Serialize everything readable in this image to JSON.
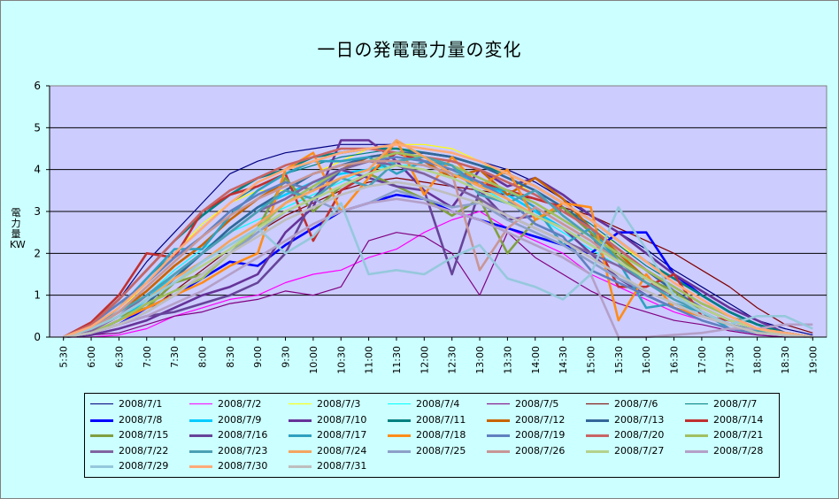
{
  "chart_data": {
    "type": "line",
    "title": "一日の発電電力量の変化",
    "ylabel": "電力量KW",
    "ylim": [
      0,
      6
    ],
    "yticks": [
      0,
      1,
      2,
      3,
      4,
      5,
      6
    ],
    "grid": true,
    "legend_position": "bottom",
    "x": [
      "5:30",
      "6:00",
      "6:30",
      "7:00",
      "7:30",
      "8:00",
      "8:30",
      "9:00",
      "9:30",
      "10:00",
      "10:30",
      "11:00",
      "11:30",
      "12:00",
      "12:30",
      "13:00",
      "13:30",
      "14:00",
      "14:30",
      "15:00",
      "15:30",
      "16:00",
      "16:30",
      "17:00",
      "17:30",
      "18:00",
      "18:30",
      "19:00"
    ],
    "series": [
      {
        "name": "2008/7/1",
        "color": "#000080",
        "values": [
          0,
          0.3,
          0.9,
          1.8,
          2.5,
          3.2,
          3.9,
          4.2,
          4.4,
          4.5,
          4.6,
          4.6,
          4.6,
          4.5,
          4.4,
          4.2,
          4.0,
          3.7,
          3.3,
          2.9,
          2.5,
          2.1,
          1.6,
          1.2,
          0.8,
          0.4,
          0.2,
          0.05
        ]
      },
      {
        "name": "2008/7/2",
        "color": "#ff00ff",
        "values": [
          0,
          0,
          0.05,
          0.2,
          0.5,
          0.7,
          0.9,
          1.0,
          1.3,
          1.5,
          1.6,
          1.9,
          2.1,
          2.5,
          2.8,
          3.0,
          2.6,
          2.3,
          2.0,
          1.5,
          1.2,
          0.9,
          0.6,
          0.4,
          0.2,
          0.1,
          0.05,
          0
        ]
      },
      {
        "name": "2008/7/3",
        "color": "#ffff00",
        "values": [
          0,
          0.2,
          0.6,
          1.3,
          2.0,
          2.7,
          3.2,
          3.5,
          3.5,
          3.9,
          4.2,
          4.5,
          4.6,
          4.6,
          4.5,
          4.2,
          3.8,
          3.4,
          3.0,
          2.6,
          2.2,
          1.8,
          1.3,
          0.9,
          0.5,
          0.3,
          0.1,
          0
        ]
      },
      {
        "name": "2008/7/4",
        "color": "#00ffff",
        "values": [
          0,
          0.15,
          0.5,
          1.0,
          1.6,
          2.1,
          2.5,
          2.8,
          3.1,
          3.4,
          3.7,
          4.0,
          4.1,
          4.1,
          3.9,
          3.6,
          3.2,
          2.9,
          2.5,
          2.1,
          1.7,
          1.3,
          0.9,
          0.6,
          0.3,
          0.15,
          0.05,
          0
        ]
      },
      {
        "name": "2008/7/5",
        "color": "#800080",
        "values": [
          0,
          0.05,
          0.1,
          0.3,
          0.5,
          0.6,
          0.8,
          0.9,
          1.1,
          1.0,
          1.2,
          2.3,
          2.5,
          2.4,
          2.0,
          1.0,
          2.5,
          1.9,
          1.5,
          1.1,
          0.8,
          0.6,
          0.4,
          0.3,
          0.15,
          0.05,
          0,
          0
        ]
      },
      {
        "name": "2008/7/6",
        "color": "#800000",
        "values": [
          0,
          0.1,
          0.3,
          0.6,
          1.1,
          1.6,
          2.1,
          2.5,
          2.9,
          3.2,
          3.5,
          3.7,
          3.8,
          3.7,
          3.6,
          3.5,
          3.4,
          3.3,
          3.1,
          2.9,
          2.6,
          2.3,
          2.0,
          1.6,
          1.2,
          0.7,
          0.3,
          0.1
        ]
      },
      {
        "name": "2008/7/7",
        "color": "#008080",
        "values": [
          0,
          0.2,
          0.7,
          1.4,
          2.0,
          2.6,
          3.2,
          3.6,
          3.9,
          4.1,
          4.3,
          4.4,
          4.5,
          4.4,
          4.3,
          4.1,
          3.8,
          3.5,
          3.1,
          2.7,
          2.2,
          1.7,
          1.3,
          0.9,
          0.5,
          0.3,
          0.1,
          0
        ]
      },
      {
        "name": "2008/7/8",
        "color": "#0000ff",
        "values": [
          0,
          0.1,
          0.3,
          0.7,
          1.0,
          1.4,
          1.8,
          1.7,
          2.2,
          2.6,
          3.0,
          3.2,
          3.4,
          3.3,
          3.0,
          2.8,
          2.6,
          2.4,
          2.2,
          2.0,
          2.5,
          2.5,
          1.5,
          1.0,
          0.6,
          0.3,
          0.1,
          0
        ]
      },
      {
        "name": "2008/7/9",
        "color": "#00ccff",
        "values": [
          0,
          0.1,
          0.4,
          0.9,
          1.5,
          2.0,
          2.6,
          3.1,
          3.4,
          3.7,
          3.9,
          4.0,
          4.2,
          4.1,
          3.9,
          3.7,
          3.4,
          3.0,
          2.6,
          2.2,
          1.8,
          1.4,
          1.0,
          0.6,
          0.3,
          0.1,
          0.05,
          0
        ]
      },
      {
        "name": "2008/7/10",
        "color": "#663399",
        "values": [
          0,
          0.05,
          0.2,
          0.4,
          0.7,
          1.0,
          1.2,
          1.5,
          2.5,
          3.1,
          4.7,
          4.7,
          4.2,
          3.5,
          3.1,
          4.0,
          3.6,
          3.8,
          3.4,
          2.9,
          2.5,
          2.0,
          1.5,
          1.1,
          0.7,
          0.4,
          0.1,
          0
        ]
      },
      {
        "name": "2008/7/11",
        "color": "#008080",
        "values": [
          0,
          0.3,
          0.9,
          1.6,
          2.3,
          2.9,
          3.4,
          3.8,
          4.0,
          4.3,
          4.4,
          4.5,
          4.5,
          4.4,
          4.3,
          4.1,
          3.9,
          3.6,
          3.2,
          2.8,
          2.3,
          1.8,
          1.4,
          1.0,
          0.6,
          0.3,
          0.1,
          0
        ]
      },
      {
        "name": "2008/7/12",
        "color": "#c86400",
        "values": [
          0,
          0.2,
          0.6,
          1.1,
          1.7,
          2.2,
          2.8,
          3.3,
          3.7,
          3.5,
          4.0,
          4.3,
          4.4,
          4.2,
          3.8,
          4.0,
          3.4,
          3.8,
          3.3,
          2.6,
          2.0,
          1.4,
          1.0,
          0.7,
          0.4,
          0.2,
          0.1,
          0
        ]
      },
      {
        "name": "2008/7/13",
        "color": "#336699",
        "values": [
          0,
          0.1,
          0.4,
          0.8,
          1.4,
          2.0,
          2.6,
          3.1,
          3.5,
          3.9,
          4.1,
          4.3,
          4.4,
          4.4,
          4.3,
          4.1,
          3.8,
          3.5,
          3.1,
          2.6,
          2.1,
          1.6,
          1.1,
          0.7,
          0.4,
          0.2,
          0.05,
          0
        ]
      },
      {
        "name": "2008/7/14",
        "color": "#c03030",
        "values": [
          0,
          0.35,
          1.0,
          2.0,
          1.9,
          3.0,
          3.4,
          3.6,
          3.9,
          2.3,
          3.5,
          3.9,
          4.4,
          4.2,
          4.0,
          3.7,
          3.5,
          3.3,
          3.1,
          2.5,
          1.2,
          1.2,
          1.5,
          0.5,
          0.4,
          0.2,
          0.1,
          0
        ]
      },
      {
        "name": "2008/7/15",
        "color": "#80a040",
        "values": [
          0,
          0.2,
          0.5,
          0.7,
          1.3,
          1.5,
          2.0,
          2.6,
          3.8,
          3.0,
          3.6,
          3.9,
          3.6,
          3.3,
          2.9,
          3.3,
          2.0,
          2.8,
          3.1,
          2.5,
          1.9,
          1.4,
          1.1,
          0.6,
          0.3,
          0.15,
          0.05,
          0
        ]
      },
      {
        "name": "2008/7/16",
        "color": "#664499",
        "values": [
          0,
          0.1,
          0.3,
          0.5,
          0.6,
          0.8,
          1.0,
          1.3,
          2.0,
          3.3,
          4.0,
          3.8,
          3.6,
          3.5,
          1.5,
          3.5,
          2.8,
          2.9,
          2.6,
          2.0,
          1.4,
          1.0,
          0.7,
          0.5,
          0.3,
          0.15,
          0.05,
          0
        ]
      },
      {
        "name": "2008/7/17",
        "color": "#30a0c0",
        "values": [
          0,
          0.2,
          0.7,
          1.4,
          2.1,
          2.1,
          2.9,
          3.5,
          3.9,
          4.2,
          4.2,
          4.3,
          3.9,
          4.2,
          4.1,
          3.6,
          3.5,
          3.1,
          2.2,
          2.6,
          1.8,
          0.7,
          0.8,
          0.6,
          0.2,
          0.1,
          0.05,
          0
        ]
      },
      {
        "name": "2008/7/18",
        "color": "#ff8c1a",
        "values": [
          0,
          0.1,
          0.4,
          0.7,
          1.0,
          1.3,
          1.7,
          2.0,
          4.0,
          4.4,
          3.0,
          3.8,
          4.7,
          3.4,
          4.3,
          3.6,
          4.0,
          2.8,
          3.2,
          3.1,
          0.4,
          1.5,
          0.7,
          0.5,
          0.3,
          0.15,
          0.05,
          0
        ]
      },
      {
        "name": "2008/7/19",
        "color": "#6080c0",
        "values": [
          0,
          0.3,
          0.8,
          1.3,
          1.9,
          2.4,
          3.0,
          3.4,
          3.7,
          3.5,
          4.0,
          4.2,
          4.3,
          4.2,
          4.0,
          3.7,
          3.3,
          2.7,
          2.4,
          1.6,
          1.3,
          1.0,
          0.7,
          0.4,
          0.2,
          0.1,
          0.05,
          0
        ]
      },
      {
        "name": "2008/7/20",
        "color": "#c86464",
        "values": [
          0,
          0.3,
          0.9,
          1.6,
          2.3,
          3.0,
          3.5,
          3.8,
          4.1,
          4.3,
          4.5,
          4.5,
          4.4,
          4.3,
          4.2,
          4.0,
          3.7,
          3.4,
          3.0,
          2.6,
          2.1,
          1.6,
          1.2,
          0.8,
          0.5,
          0.2,
          0.1,
          0
        ]
      },
      {
        "name": "2008/7/21",
        "color": "#a0c060",
        "values": [
          0,
          0.1,
          0.4,
          0.8,
          1.1,
          1.4,
          2.0,
          2.6,
          3.2,
          3.6,
          4.0,
          4.2,
          4.4,
          4.3,
          4.1,
          3.8,
          3.5,
          3.2,
          2.8,
          2.4,
          2.0,
          1.6,
          1.2,
          0.8,
          0.5,
          0.2,
          0.1,
          0
        ]
      },
      {
        "name": "2008/7/22",
        "color": "#8064a0",
        "values": [
          0,
          0.15,
          0.5,
          1.0,
          1.5,
          2.0,
          2.5,
          3.0,
          3.3,
          3.7,
          4.0,
          4.2,
          4.1,
          3.9,
          3.6,
          3.3,
          2.9,
          2.6,
          2.3,
          2.0,
          1.7,
          1.3,
          1.0,
          0.7,
          0.4,
          0.2,
          0.05,
          0
        ]
      },
      {
        "name": "2008/7/23",
        "color": "#4ba0b4",
        "values": [
          0,
          0.2,
          0.6,
          1.0,
          1.5,
          2.0,
          2.5,
          3.0,
          3.5,
          3.3,
          3.8,
          3.6,
          4.2,
          4.3,
          4.1,
          3.4,
          3.2,
          3.5,
          2.9,
          2.4,
          1.8,
          1.3,
          0.9,
          0.6,
          0.3,
          0.15,
          0.05,
          0
        ]
      },
      {
        "name": "2008/7/24",
        "color": "#f4a460",
        "values": [
          0,
          0.2,
          0.5,
          0.9,
          1.4,
          1.8,
          2.3,
          2.7,
          3.2,
          3.5,
          3.8,
          4.0,
          4.7,
          4.3,
          3.9,
          3.6,
          3.3,
          2.9,
          2.6,
          2.2,
          1.8,
          1.4,
          1.0,
          0.7,
          0.4,
          0.2,
          0.05,
          0
        ]
      },
      {
        "name": "2008/7/25",
        "color": "#8ca0c8",
        "values": [
          0,
          0.1,
          0.3,
          0.6,
          1.0,
          1.5,
          2.0,
          2.5,
          3.0,
          3.3,
          3.0,
          3.2,
          3.5,
          3.3,
          3.1,
          3.2,
          2.8,
          2.5,
          2.2,
          1.8,
          1.4,
          1.1,
          0.8,
          0.5,
          0.3,
          0.1,
          0.05,
          0
        ]
      },
      {
        "name": "2008/7/26",
        "color": "#c89696",
        "values": [
          0,
          0.2,
          0.6,
          1.2,
          1.8,
          2.4,
          2.9,
          3.3,
          3.6,
          3.9,
          4.1,
          4.2,
          4.2,
          4.1,
          3.9,
          1.6,
          2.6,
          3.1,
          2.7,
          2.3,
          1.8,
          1.4,
          1.0,
          0.6,
          0.3,
          0.1,
          0.05,
          0
        ]
      },
      {
        "name": "2008/7/27",
        "color": "#b4d28c",
        "values": [
          0,
          0.2,
          0.5,
          0.9,
          1.3,
          1.7,
          2.1,
          2.6,
          3.0,
          3.3,
          3.6,
          3.9,
          4.1,
          4.0,
          3.8,
          3.5,
          3.2,
          2.9,
          2.6,
          2.2,
          1.8,
          1.4,
          1.0,
          0.7,
          0.4,
          0.2,
          0.05,
          0
        ]
      },
      {
        "name": "2008/7/28",
        "color": "#b4a0c8",
        "values": [
          0,
          0.1,
          0.3,
          0.5,
          0.8,
          1.1,
          1.5,
          1.9,
          2.3,
          2.7,
          3.0,
          3.2,
          3.3,
          3.2,
          3.0,
          2.8,
          2.5,
          2.2,
          1.9,
          1.5,
          0,
          0,
          0.05,
          0.1,
          0.2,
          0.2,
          0.3,
          0.3
        ]
      },
      {
        "name": "2008/7/29",
        "color": "#96c8dc",
        "values": [
          0,
          0.2,
          0.5,
          0.9,
          1.3,
          1.8,
          2.2,
          2.6,
          2.0,
          2.4,
          3.2,
          1.5,
          1.6,
          1.5,
          1.9,
          2.2,
          1.4,
          1.2,
          0.9,
          1.5,
          3.1,
          2.1,
          1.0,
          0.6,
          0.3,
          0.5,
          0.5,
          0.2
        ]
      },
      {
        "name": "2008/7/30",
        "color": "#ffaa78",
        "values": [
          0,
          0.25,
          0.7,
          1.3,
          2.0,
          2.6,
          3.2,
          3.7,
          4.0,
          4.2,
          4.4,
          4.5,
          4.6,
          4.5,
          4.4,
          4.2,
          3.9,
          3.6,
          3.2,
          2.8,
          2.3,
          1.8,
          1.3,
          0.9,
          0.5,
          0.2,
          0.1,
          0
        ]
      },
      {
        "name": "2008/7/31",
        "color": "#bebebe",
        "values": [
          0,
          0.1,
          0.3,
          0.6,
          1.0,
          1.5,
          2.0,
          2.4,
          2.8,
          3.1,
          3.4,
          3.6,
          3.7,
          3.6,
          3.4,
          3.2,
          2.9,
          2.6,
          2.3,
          1.9,
          1.5,
          1.1,
          0.8,
          0.5,
          0.3,
          0.1,
          0.05,
          0
        ]
      }
    ]
  }
}
